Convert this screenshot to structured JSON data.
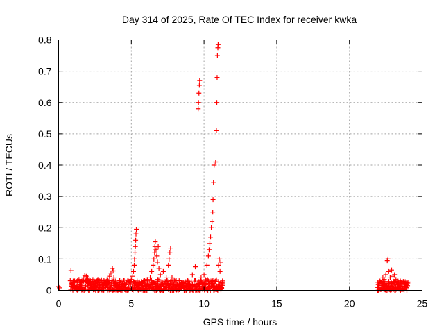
{
  "chart_data": {
    "type": "scatter",
    "title": "Day 314 of 2025, Rate Of TEC Index for receiver kwka",
    "xlabel": "GPS time / hours",
    "ylabel": "ROTI / TECUs",
    "xlim": [
      0,
      25
    ],
    "ylim": [
      0,
      0.8
    ],
    "xticks": [
      0,
      5,
      10,
      15,
      20,
      25
    ],
    "yticks": [
      0,
      0.1,
      0.2,
      0.3,
      0.4,
      0.5,
      0.6,
      0.7,
      0.8
    ],
    "grid": true,
    "marker": "plus",
    "series_color": "#ff0000",
    "points": [
      [
        0.0,
        0.012
      ],
      [
        0.05,
        0.008
      ],
      [
        0.85,
        0.063
      ],
      [
        0.9,
        0.02
      ],
      [
        1.0,
        0.03
      ],
      [
        1.1,
        0.015
      ],
      [
        1.2,
        0.025
      ],
      [
        1.3,
        0.02
      ],
      [
        1.4,
        0.035
      ],
      [
        1.5,
        0.025
      ],
      [
        1.6,
        0.03
      ],
      [
        1.7,
        0.04
      ],
      [
        1.8,
        0.048
      ],
      [
        1.9,
        0.045
      ],
      [
        2.0,
        0.04
      ],
      [
        2.1,
        0.035
      ],
      [
        2.2,
        0.025
      ],
      [
        2.3,
        0.02
      ],
      [
        2.4,
        0.018
      ],
      [
        2.5,
        0.022
      ],
      [
        2.6,
        0.03
      ],
      [
        2.7,
        0.035
      ],
      [
        2.8,
        0.025
      ],
      [
        2.9,
        0.03
      ],
      [
        3.0,
        0.02
      ],
      [
        3.1,
        0.018
      ],
      [
        3.2,
        0.025
      ],
      [
        3.3,
        0.02
      ],
      [
        3.4,
        0.03
      ],
      [
        3.5,
        0.045
      ],
      [
        3.6,
        0.055
      ],
      [
        3.7,
        0.07
      ],
      [
        3.75,
        0.062
      ],
      [
        3.8,
        0.04
      ],
      [
        3.9,
        0.03
      ],
      [
        4.0,
        0.02
      ],
      [
        4.2,
        0.018
      ],
      [
        4.4,
        0.022
      ],
      [
        4.6,
        0.02
      ],
      [
        4.8,
        0.03
      ],
      [
        5.0,
        0.035
      ],
      [
        5.1,
        0.045
      ],
      [
        5.15,
        0.06
      ],
      [
        5.2,
        0.08
      ],
      [
        5.22,
        0.1
      ],
      [
        5.25,
        0.12
      ],
      [
        5.28,
        0.14
      ],
      [
        5.3,
        0.16
      ],
      [
        5.32,
        0.18
      ],
      [
        5.35,
        0.195
      ],
      [
        5.4,
        0.03
      ],
      [
        5.5,
        0.02
      ],
      [
        5.7,
        0.025
      ],
      [
        5.9,
        0.03
      ],
      [
        6.1,
        0.035
      ],
      [
        6.3,
        0.04
      ],
      [
        6.4,
        0.06
      ],
      [
        6.5,
        0.08
      ],
      [
        6.55,
        0.1
      ],
      [
        6.6,
        0.12
      ],
      [
        6.62,
        0.14
      ],
      [
        6.65,
        0.155
      ],
      [
        6.7,
        0.13
      ],
      [
        6.75,
        0.11
      ],
      [
        6.8,
        0.09
      ],
      [
        6.85,
        0.14
      ],
      [
        6.9,
        0.07
      ],
      [
        7.0,
        0.05
      ],
      [
        7.2,
        0.06
      ],
      [
        7.4,
        0.04
      ],
      [
        7.55,
        0.08
      ],
      [
        7.6,
        0.1
      ],
      [
        7.65,
        0.12
      ],
      [
        7.7,
        0.135
      ],
      [
        7.8,
        0.04
      ],
      [
        8.0,
        0.03
      ],
      [
        8.3,
        0.02
      ],
      [
        8.6,
        0.025
      ],
      [
        8.9,
        0.03
      ],
      [
        9.2,
        0.05
      ],
      [
        9.4,
        0.075
      ],
      [
        9.6,
        0.58
      ],
      [
        9.62,
        0.6
      ],
      [
        9.65,
        0.63
      ],
      [
        9.68,
        0.655
      ],
      [
        9.7,
        0.67
      ],
      [
        9.8,
        0.04
      ],
      [
        10.0,
        0.05
      ],
      [
        10.2,
        0.08
      ],
      [
        10.3,
        0.11
      ],
      [
        10.35,
        0.13
      ],
      [
        10.4,
        0.15
      ],
      [
        10.45,
        0.17
      ],
      [
        10.5,
        0.2
      ],
      [
        10.55,
        0.22
      ],
      [
        10.6,
        0.25
      ],
      [
        10.62,
        0.29
      ],
      [
        10.65,
        0.345
      ],
      [
        10.7,
        0.4
      ],
      [
        10.8,
        0.41
      ],
      [
        10.85,
        0.51
      ],
      [
        10.88,
        0.6
      ],
      [
        10.9,
        0.68
      ],
      [
        10.92,
        0.75
      ],
      [
        10.95,
        0.775
      ],
      [
        10.97,
        0.785
      ],
      [
        11.0,
        0.08
      ],
      [
        11.05,
        0.1
      ],
      [
        11.1,
        0.06
      ],
      [
        11.15,
        0.09
      ],
      [
        22.0,
        0.02
      ],
      [
        22.1,
        0.03
      ],
      [
        22.2,
        0.025
      ],
      [
        22.3,
        0.04
      ],
      [
        22.4,
        0.035
      ],
      [
        22.5,
        0.05
      ],
      [
        22.6,
        0.095
      ],
      [
        22.65,
        0.1
      ],
      [
        22.7,
        0.06
      ],
      [
        22.8,
        0.04
      ],
      [
        22.9,
        0.065
      ],
      [
        23.0,
        0.045
      ],
      [
        23.1,
        0.05
      ],
      [
        23.2,
        0.035
      ],
      [
        23.3,
        0.03
      ],
      [
        23.4,
        0.025
      ],
      [
        23.5,
        0.03
      ],
      [
        23.6,
        0.02
      ],
      [
        23.7,
        0.025
      ],
      [
        23.8,
        0.02
      ],
      [
        23.9,
        0.018
      ],
      [
        24.0,
        0.015
      ]
    ],
    "dense_ranges": [
      {
        "x": [
          0.8,
          11.3
        ],
        "y_max": 0.035
      },
      {
        "x": [
          21.9,
          24.0
        ],
        "y_max": 0.03
      }
    ]
  }
}
